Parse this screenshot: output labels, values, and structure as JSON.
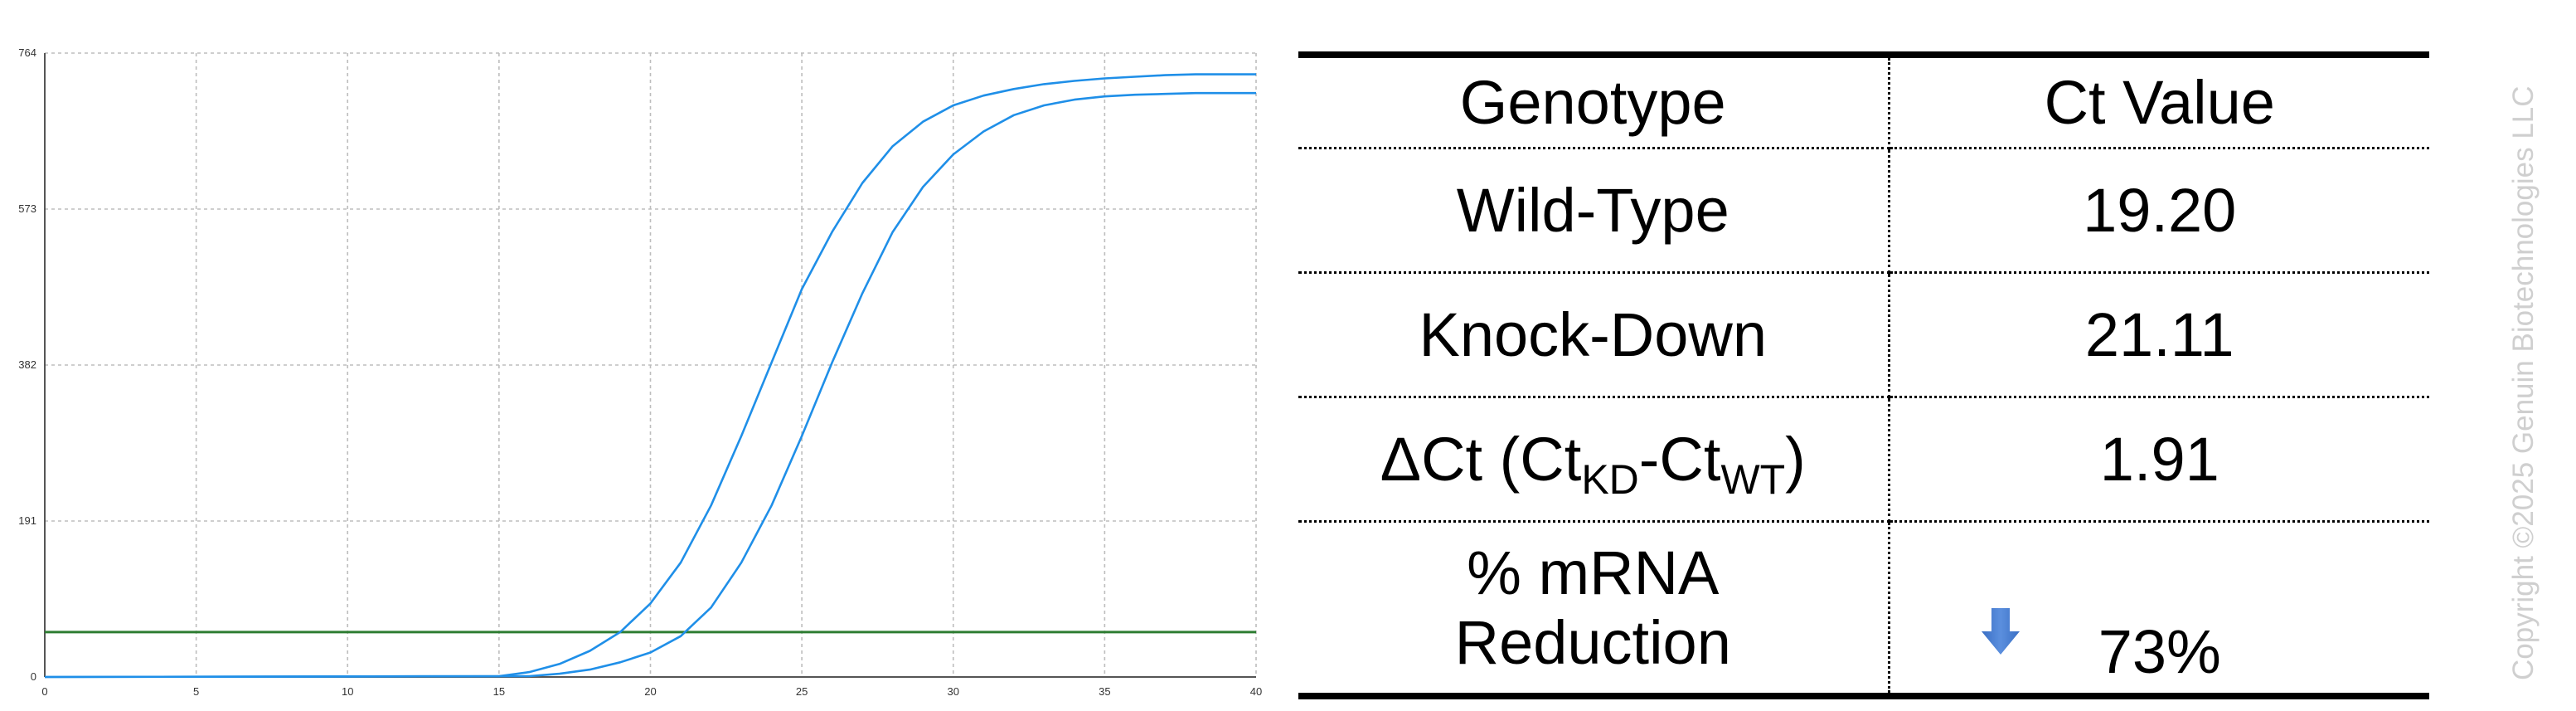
{
  "chart_data": {
    "type": "line",
    "title": "",
    "xlabel": "",
    "ylabel": "",
    "xlim": [
      0,
      40
    ],
    "ylim": [
      0,
      764
    ],
    "x_ticks": [
      0,
      5,
      10,
      15,
      20,
      25,
      30,
      35,
      40
    ],
    "y_ticks": [
      0,
      191,
      382,
      573,
      764
    ],
    "x_tick_labels": [
      "0",
      "5",
      "10",
      "15",
      "20",
      "25",
      "30",
      "35",
      "40"
    ],
    "y_tick_labels": [
      "0",
      "191",
      "382",
      "573",
      "764"
    ],
    "grid": true,
    "legend": "none",
    "series": [
      {
        "x": [
          0,
          15,
          16,
          17,
          18,
          19,
          20,
          21,
          22,
          23,
          24,
          25,
          26,
          27,
          28,
          29,
          30,
          31,
          32,
          33,
          34,
          35,
          36,
          37,
          38,
          39,
          40
        ],
        "y": [
          0,
          1,
          6,
          16,
          32,
          55,
          90,
          140,
          210,
          295,
          385,
          475,
          545,
          605,
          650,
          680,
          700,
          712,
          720,
          726,
          730,
          733,
          735,
          737,
          738,
          738,
          738
        ]
      },
      {
        "x": [
          0,
          16,
          17,
          18,
          19,
          20,
          21,
          22,
          23,
          24,
          25,
          26,
          27,
          28,
          29,
          30,
          31,
          32,
          33,
          34,
          35,
          36,
          37,
          38,
          39,
          40
        ],
        "y": [
          0,
          1,
          4,
          9,
          18,
          30,
          50,
          85,
          140,
          210,
          295,
          385,
          470,
          545,
          600,
          640,
          668,
          688,
          700,
          707,
          711,
          713,
          714,
          715,
          715,
          715
        ]
      }
    ],
    "threshold": {
      "y": 55
    },
    "colors": {
      "curves": "#1f8fe8",
      "threshold": "#2e7d32",
      "grid": "#bdbdbd",
      "axis": "#555555"
    }
  },
  "table": {
    "headers": [
      "Genotype",
      "Ct Value"
    ],
    "rows": {
      "wild_type": {
        "label": "Wild-Type",
        "value": "19.20"
      },
      "knock_down": {
        "label": "Knock-Down",
        "value": "21.11"
      },
      "delta": {
        "symbol": "ΔCt (Ct",
        "sub1": "KD",
        "mid": "-Ct",
        "sub2": "WT",
        "close": ")",
        "value": "1.91"
      },
      "reduction": {
        "label_line1": "% mRNA",
        "label_line2": "Reduction",
        "value": "73%",
        "icon": "down-arrow-icon",
        "icon_color": "#3a6fc4"
      }
    }
  },
  "copyright": "Copyright ©2025 Genuin Biotechnologies LLC"
}
